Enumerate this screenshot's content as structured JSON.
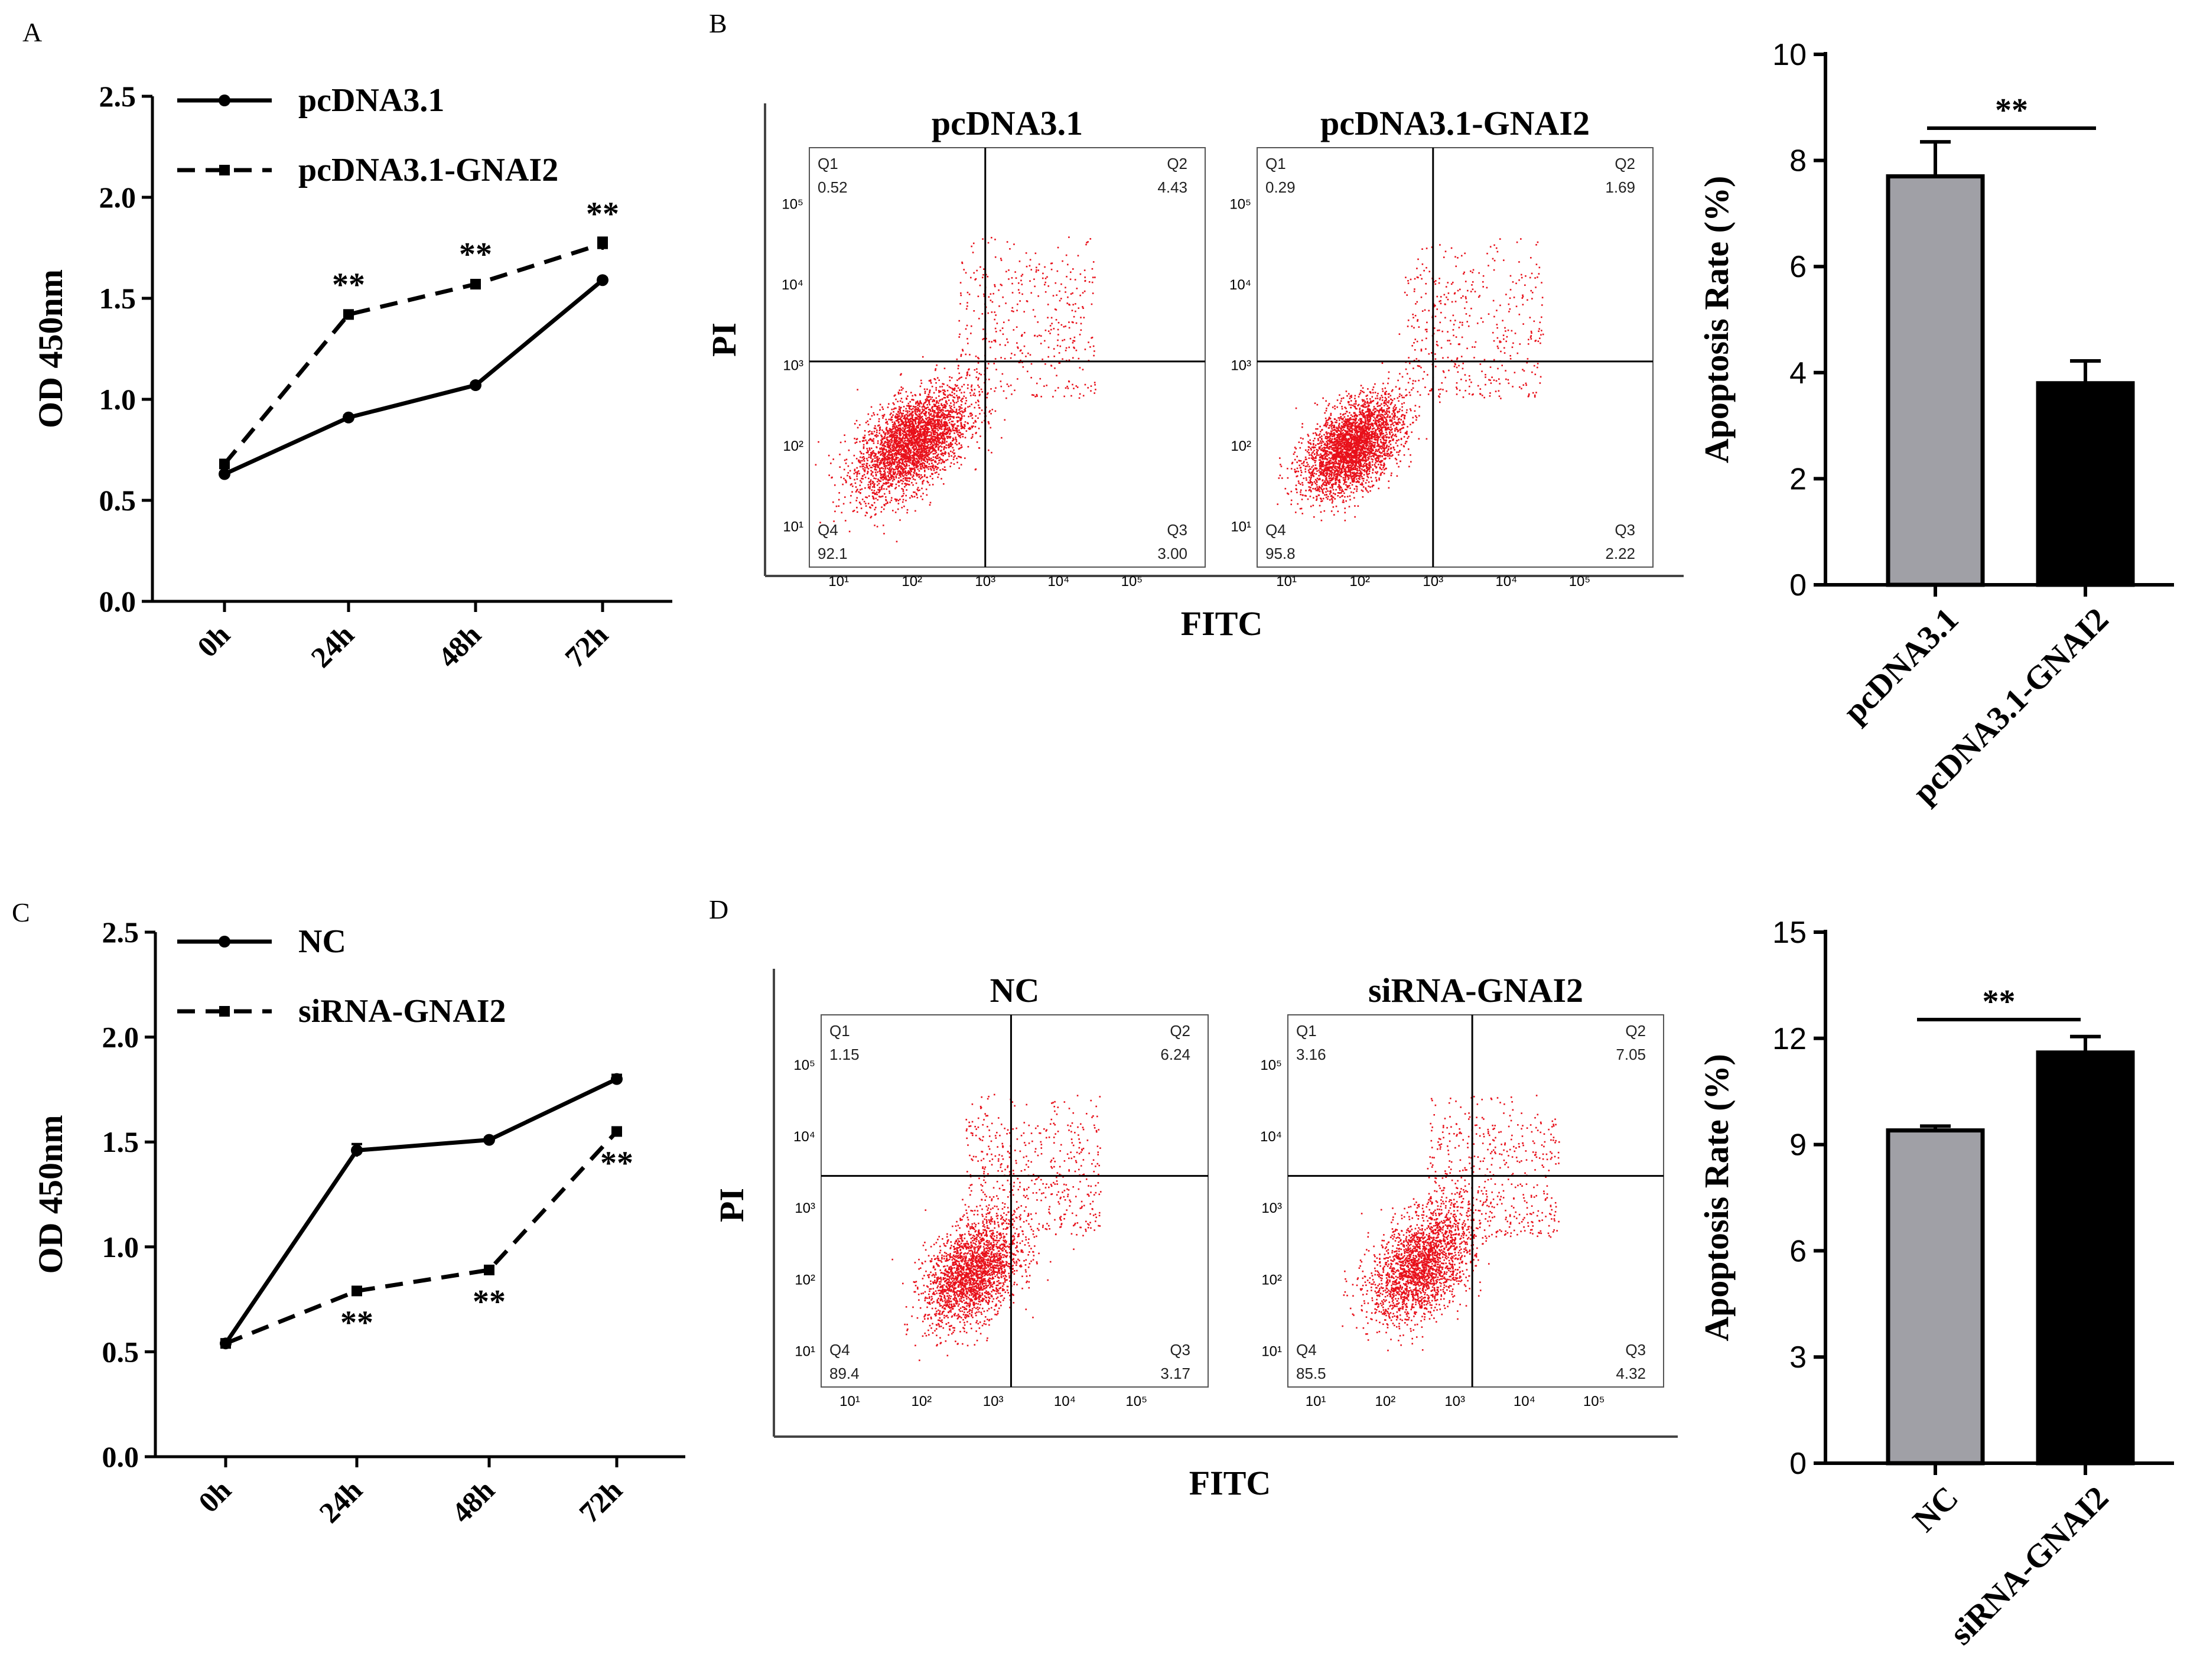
{
  "panel_labels": [
    "A",
    "B",
    "C",
    "D"
  ],
  "colors": {
    "gray_bar": "#a0a0a6",
    "black_bar": "#000000",
    "dots": "#e8101a"
  },
  "chart_data": [
    {
      "id": "A",
      "type": "line",
      "categories": [
        "0h",
        "24h",
        "48h",
        "72h"
      ],
      "series": [
        {
          "name": "pcDNA3.1",
          "style": "solid",
          "marker": "circle",
          "values": [
            0.63,
            0.91,
            1.07,
            1.59
          ],
          "errors": [
            0.01,
            0.01,
            0.01,
            0.01
          ]
        },
        {
          "name": "pcDNA3.1-GNAI2",
          "style": "dashed",
          "marker": "square",
          "values": [
            0.68,
            1.42,
            1.57,
            1.77
          ],
          "errors": [
            0.02,
            0.02,
            0.01,
            0.03
          ]
        }
      ],
      "annotations": [
        "**",
        "**",
        "**"
      ],
      "annotation_points": [
        1,
        2,
        3
      ],
      "annotation_pos": "above",
      "ylabel": "OD 450nm",
      "ylim": [
        0,
        2.5
      ],
      "yticks": [
        "0.0",
        "0.5",
        "1.0",
        "1.5",
        "2.0",
        "2.5"
      ]
    },
    {
      "id": "B-flow",
      "type": "scatter",
      "xlabel": "FITC",
      "ylabel": "PI",
      "tick_labels": [
        "10¹",
        "10²",
        "10³",
        "10⁴",
        "10⁵"
      ],
      "plots": [
        {
          "title": "pcDNA3.1",
          "quadrants": {
            "Q1": "0.52",
            "Q2": "4.43",
            "Q3": "3.00",
            "Q4": "92.1"
          }
        },
        {
          "title": "pcDNA3.1-GNAI2",
          "quadrants": {
            "Q1": "0.29",
            "Q2": "1.69",
            "Q3": "2.22",
            "Q4": "95.8"
          }
        }
      ]
    },
    {
      "id": "B-bar",
      "type": "bar",
      "categories": [
        "pcDNA3.1",
        "pcDNA3.1-GNAI2"
      ],
      "values": [
        7.7,
        3.8
      ],
      "errors": [
        0.65,
        0.42
      ],
      "ylabel": "Apoptosis Rate (%)",
      "ylim": [
        0,
        10
      ],
      "yticks": [
        "0",
        "2",
        "4",
        "6",
        "8",
        "10"
      ],
      "significance": "**"
    },
    {
      "id": "C",
      "type": "line",
      "categories": [
        "0h",
        "24h",
        "48h",
        "72h"
      ],
      "series": [
        {
          "name": "NC",
          "style": "solid",
          "marker": "circle",
          "values": [
            0.54,
            1.46,
            1.51,
            1.8
          ],
          "errors": [
            0.01,
            0.03,
            0.01,
            0.02
          ]
        },
        {
          "name": "siRNA-GNAI2",
          "style": "dashed",
          "marker": "square",
          "values": [
            0.54,
            0.79,
            0.89,
            1.55
          ],
          "errors": [
            0.01,
            0.01,
            0.01,
            0.01
          ]
        }
      ],
      "annotations": [
        "**",
        "**",
        "**"
      ],
      "annotation_points": [
        1,
        2,
        3
      ],
      "annotation_pos": "below",
      "ylabel": "OD 450nm",
      "ylim": [
        0,
        2.5
      ],
      "yticks": [
        "0.0",
        "0.5",
        "1.0",
        "1.5",
        "2.0",
        "2.5"
      ]
    },
    {
      "id": "D-flow",
      "type": "scatter",
      "xlabel": "FITC",
      "ylabel": "PI",
      "tick_labels": [
        "10¹",
        "10²",
        "10³",
        "10⁴",
        "10⁵"
      ],
      "plots": [
        {
          "title": "NC",
          "quadrants": {
            "Q1": "1.15",
            "Q2": "6.24",
            "Q3": "3.17",
            "Q4": "89.4"
          }
        },
        {
          "title": "siRNA-GNAI2",
          "quadrants": {
            "Q1": "3.16",
            "Q2": "7.05",
            "Q3": "4.32",
            "Q4": "85.5"
          }
        }
      ]
    },
    {
      "id": "D-bar",
      "type": "bar",
      "categories": [
        "NC",
        "siRNA-GNAI2"
      ],
      "values": [
        9.4,
        11.6
      ],
      "errors": [
        0.12,
        0.45
      ],
      "ylabel": "Apoptosis Rate (%)",
      "ylim": [
        0,
        15
      ],
      "yticks": [
        "0",
        "3",
        "6",
        "9",
        "12",
        "15"
      ],
      "significance": "**"
    }
  ]
}
